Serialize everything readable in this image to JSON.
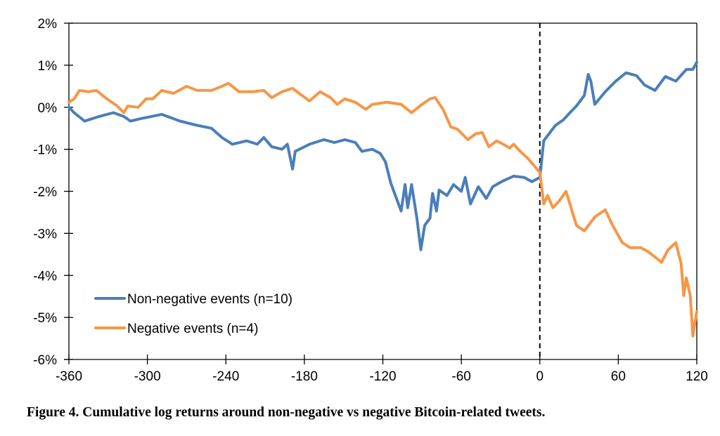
{
  "chart_data": {
    "type": "line",
    "title": "",
    "xlabel": "",
    "ylabel": "",
    "xlim": [
      -360,
      120
    ],
    "ylim": [
      -6,
      2
    ],
    "x_ticks": [
      -360,
      -300,
      -240,
      -180,
      -120,
      -60,
      0,
      60,
      120
    ],
    "x_tick_labels": [
      "-360",
      "-300",
      "-240",
      "-180",
      "-120",
      "-60",
      "0",
      "60",
      "120"
    ],
    "y_ticks": [
      2,
      1,
      0,
      -1,
      -2,
      -3,
      -4,
      -5,
      -6
    ],
    "y_tick_labels": [
      "2%",
      "1%",
      "0%",
      "-1%",
      "-2%",
      "-3%",
      "-4%",
      "-5%",
      "-6%"
    ],
    "grid": false,
    "legend_position": "bottom-left",
    "annotations": [
      {
        "type": "vertical-dashed-line",
        "x": 0
      }
    ],
    "series": [
      {
        "name": "Non-negative events (n=10)",
        "color": "#4A7EBB",
        "points": [
          [
            -360,
            0.0
          ],
          [
            -356,
            -0.13
          ],
          [
            -348,
            -0.33
          ],
          [
            -337,
            -0.22
          ],
          [
            -326,
            -0.13
          ],
          [
            -318,
            -0.22
          ],
          [
            -313,
            -0.33
          ],
          [
            -305,
            -0.27
          ],
          [
            -289,
            -0.17
          ],
          [
            -275,
            -0.33
          ],
          [
            -262,
            -0.43
          ],
          [
            -251,
            -0.5
          ],
          [
            -243,
            -0.72
          ],
          [
            -235,
            -0.88
          ],
          [
            -224,
            -0.8
          ],
          [
            -216,
            -0.88
          ],
          [
            -211,
            -0.72
          ],
          [
            -205,
            -0.94
          ],
          [
            -197,
            -1.0
          ],
          [
            -193,
            -0.88
          ],
          [
            -189,
            -1.47
          ],
          [
            -187,
            -1.05
          ],
          [
            -176,
            -0.88
          ],
          [
            -165,
            -0.77
          ],
          [
            -157,
            -0.84
          ],
          [
            -149,
            -0.77
          ],
          [
            -141,
            -0.84
          ],
          [
            -136,
            -1.05
          ],
          [
            -128,
            -1.0
          ],
          [
            -122,
            -1.1
          ],
          [
            -118,
            -1.3
          ],
          [
            -114,
            -1.8
          ],
          [
            -109,
            -2.22
          ],
          [
            -106,
            -2.47
          ],
          [
            -103,
            -1.84
          ],
          [
            -101,
            -2.39
          ],
          [
            -98,
            -1.84
          ],
          [
            -94,
            -2.64
          ],
          [
            -91,
            -3.39
          ],
          [
            -88,
            -2.81
          ],
          [
            -84,
            -2.64
          ],
          [
            -82,
            -2.05
          ],
          [
            -79,
            -2.47
          ],
          [
            -77,
            -1.97
          ],
          [
            -71,
            -2.1
          ],
          [
            -66,
            -1.84
          ],
          [
            -60,
            -2.0
          ],
          [
            -57,
            -1.67
          ],
          [
            -53,
            -2.3
          ],
          [
            -47,
            -1.89
          ],
          [
            -41,
            -2.17
          ],
          [
            -36,
            -1.89
          ],
          [
            -28,
            -1.75
          ],
          [
            -20,
            -1.64
          ],
          [
            -12,
            -1.67
          ],
          [
            -6,
            -1.77
          ],
          [
            0,
            -1.67
          ],
          [
            3,
            -0.8
          ],
          [
            7,
            -0.63
          ],
          [
            12,
            -0.43
          ],
          [
            18,
            -0.3
          ],
          [
            23,
            -0.13
          ],
          [
            28,
            0.03
          ],
          [
            34,
            0.28
          ],
          [
            37,
            0.78
          ],
          [
            39,
            0.62
          ],
          [
            42,
            0.07
          ],
          [
            50,
            0.37
          ],
          [
            58,
            0.62
          ],
          [
            66,
            0.82
          ],
          [
            74,
            0.75
          ],
          [
            80,
            0.53
          ],
          [
            88,
            0.4
          ],
          [
            96,
            0.73
          ],
          [
            104,
            0.62
          ],
          [
            112,
            0.9
          ],
          [
            117,
            0.9
          ],
          [
            120,
            1.07
          ]
        ]
      },
      {
        "name": "Negative events (n=4)",
        "color": "#F79646",
        "points": [
          [
            -360,
            0.12
          ],
          [
            -356,
            0.2
          ],
          [
            -352,
            0.4
          ],
          [
            -345,
            0.37
          ],
          [
            -339,
            0.4
          ],
          [
            -331,
            0.2
          ],
          [
            -323,
            0.03
          ],
          [
            -318,
            -0.13
          ],
          [
            -315,
            0.03
          ],
          [
            -307,
            0.0
          ],
          [
            -301,
            0.2
          ],
          [
            -296,
            0.2
          ],
          [
            -289,
            0.4
          ],
          [
            -280,
            0.33
          ],
          [
            -270,
            0.5
          ],
          [
            -262,
            0.4
          ],
          [
            -251,
            0.4
          ],
          [
            -243,
            0.5
          ],
          [
            -238,
            0.57
          ],
          [
            -230,
            0.37
          ],
          [
            -219,
            0.37
          ],
          [
            -211,
            0.4
          ],
          [
            -205,
            0.23
          ],
          [
            -197,
            0.37
          ],
          [
            -189,
            0.45
          ],
          [
            -184,
            0.33
          ],
          [
            -176,
            0.15
          ],
          [
            -168,
            0.37
          ],
          [
            -160,
            0.23
          ],
          [
            -155,
            0.07
          ],
          [
            -149,
            0.2
          ],
          [
            -141,
            0.12
          ],
          [
            -133,
            -0.05
          ],
          [
            -128,
            0.07
          ],
          [
            -117,
            0.12
          ],
          [
            -106,
            0.07
          ],
          [
            -98,
            -0.13
          ],
          [
            -90,
            0.07
          ],
          [
            -84,
            0.2
          ],
          [
            -80,
            0.23
          ],
          [
            -74,
            -0.05
          ],
          [
            -68,
            -0.47
          ],
          [
            -63,
            -0.52
          ],
          [
            -55,
            -0.77
          ],
          [
            -49,
            -0.63
          ],
          [
            -44,
            -0.6
          ],
          [
            -39,
            -0.94
          ],
          [
            -33,
            -0.8
          ],
          [
            -28,
            -0.88
          ],
          [
            -23,
            -0.97
          ],
          [
            -20,
            -0.88
          ],
          [
            -15,
            -1.05
          ],
          [
            -9,
            -1.22
          ],
          [
            -3,
            -1.44
          ],
          [
            0,
            -1.55
          ],
          [
            3,
            -2.3
          ],
          [
            6,
            -2.1
          ],
          [
            10,
            -2.39
          ],
          [
            15,
            -2.22
          ],
          [
            20,
            -2.0
          ],
          [
            28,
            -2.81
          ],
          [
            34,
            -2.94
          ],
          [
            42,
            -2.61
          ],
          [
            50,
            -2.44
          ],
          [
            55,
            -2.77
          ],
          [
            63,
            -3.22
          ],
          [
            69,
            -3.34
          ],
          [
            77,
            -3.34
          ],
          [
            82,
            -3.42
          ],
          [
            88,
            -3.56
          ],
          [
            93,
            -3.69
          ],
          [
            98,
            -3.39
          ],
          [
            104,
            -3.22
          ],
          [
            108,
            -3.72
          ],
          [
            110,
            -4.48
          ],
          [
            112,
            -4.06
          ],
          [
            115,
            -4.48
          ],
          [
            117,
            -5.44
          ],
          [
            120,
            -4.86
          ]
        ]
      }
    ]
  },
  "caption": "Figure 4. Cumulative log returns around non-negative vs negative Bitcoin-related tweets."
}
